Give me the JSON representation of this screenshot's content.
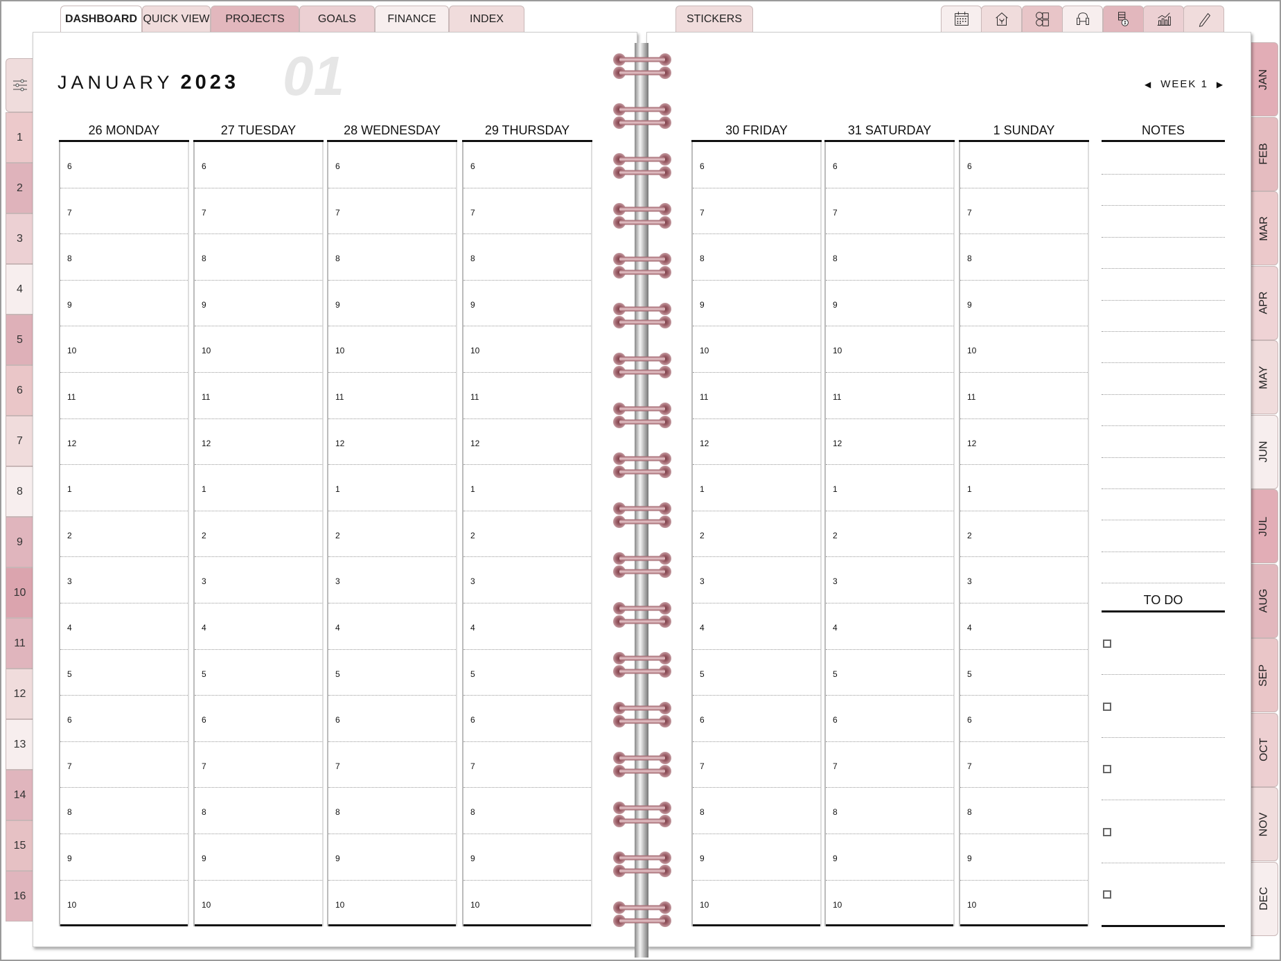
{
  "top_tabs": [
    {
      "label": "DASHBOARD",
      "color": "#ffffff",
      "active": true
    },
    {
      "label": "QUICK VIEW",
      "color": "#f0dcdc"
    },
    {
      "label": "PROJECTS",
      "color": "#e2b7bd"
    },
    {
      "label": "GOALS",
      "color": "#ecd0d3"
    },
    {
      "label": "FINANCE",
      "color": "#f7eeee"
    },
    {
      "label": "INDEX",
      "color": "#f0dcdc"
    },
    {
      "label": "STICKERS",
      "color": "#f0dcdc"
    }
  ],
  "icon_tabs": [
    {
      "icon": "calendar-icon",
      "color": "#f7eeee"
    },
    {
      "icon": "home-icon",
      "color": "#f0dcdc"
    },
    {
      "icon": "hobbies-icon",
      "color": "#e8c5c8"
    },
    {
      "icon": "fitness-icon",
      "color": "#f7eeee"
    },
    {
      "icon": "coins-icon",
      "color": "#e2b7bd"
    },
    {
      "icon": "growth-chart-icon",
      "color": "#ecd0d3"
    },
    {
      "icon": "pencil-icon",
      "color": "#f0dcdc"
    }
  ],
  "left_tabs": {
    "settings_icon": "sliders-icon",
    "settings_color": "#efdcdc",
    "items": [
      {
        "label": "1",
        "color": "#ecc9cb"
      },
      {
        "label": "2",
        "color": "#dfb3bb"
      },
      {
        "label": "3",
        "color": "#ecd0d3"
      },
      {
        "label": "4",
        "color": "#f7eeee"
      },
      {
        "label": "5",
        "color": "#deb0b8"
      },
      {
        "label": "6",
        "color": "#eac6c8"
      },
      {
        "label": "7",
        "color": "#f0dcdc"
      },
      {
        "label": "8",
        "color": "#f7eeee"
      },
      {
        "label": "9",
        "color": "#e0b5bd"
      },
      {
        "label": "10",
        "color": "#dba4ae"
      },
      {
        "label": "11",
        "color": "#e0b5bd"
      },
      {
        "label": "12",
        "color": "#f0dcdc"
      },
      {
        "label": "13",
        "color": "#f7eeee"
      },
      {
        "label": "14",
        "color": "#e0b5bd"
      },
      {
        "label": "15",
        "color": "#e6c1c4"
      },
      {
        "label": "16",
        "color": "#e0b5bd"
      }
    ]
  },
  "month_tabs": [
    {
      "label": "JAN",
      "color": "#e2adb6"
    },
    {
      "label": "FEB",
      "color": "#e5bcc0"
    },
    {
      "label": "MAR",
      "color": "#ecc9cb"
    },
    {
      "label": "APR",
      "color": "#efd3d5"
    },
    {
      "label": "MAY",
      "color": "#f0dcdc"
    },
    {
      "label": "JUN",
      "color": "#f7eeee"
    },
    {
      "label": "JUL",
      "color": "#e2adb6"
    },
    {
      "label": "AUG",
      "color": "#e2b7bd"
    },
    {
      "label": "SEP",
      "color": "#eac6c8"
    },
    {
      "label": "OCT",
      "color": "#edcfd1"
    },
    {
      "label": "NOV",
      "color": "#f0dcdc"
    },
    {
      "label": "DEC",
      "color": "#f7eeee"
    }
  ],
  "header": {
    "month": "JANUARY",
    "year": "2023",
    "month_number": "01",
    "week_label": "WEEK 1"
  },
  "days": [
    "26 MONDAY",
    "27 TUESDAY",
    "28 WEDNESDAY",
    "29 THURSDAY",
    "30 FRIDAY",
    "31 SATURDAY",
    "1 SUNDAY"
  ],
  "hours": [
    "6",
    "7",
    "8",
    "9",
    "10",
    "11",
    "12",
    "1",
    "2",
    "3",
    "4",
    "5",
    "6",
    "7",
    "8",
    "9",
    "10"
  ],
  "notes": {
    "title": "NOTES",
    "line_count": 14
  },
  "todo": {
    "title": "TO DO",
    "item_count": 5
  },
  "colors": {
    "ring": "#9c5f68",
    "spine": "#c8c8c8"
  }
}
